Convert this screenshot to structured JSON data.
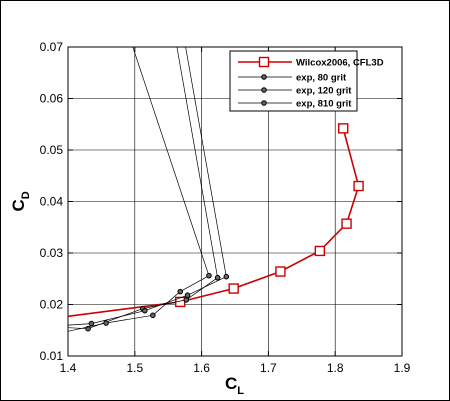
{
  "chart_data": {
    "type": "line",
    "xlabel": "C",
    "xlabel_sub": "L",
    "ylabel": "C",
    "ylabel_sub": "D",
    "xlim": [
      1.4,
      1.9
    ],
    "ylim": [
      0.01,
      0.07
    ],
    "xticks": [
      "1.4",
      "1.5",
      "1.6",
      "1.7",
      "1.8",
      "1.9"
    ],
    "yticks": [
      "0.01",
      "0.02",
      "0.03",
      "0.04",
      "0.05",
      "0.06",
      "0.07"
    ],
    "grid": true,
    "legend_position": "top-right",
    "series": [
      {
        "name": "Wilcox2006, CFL3D",
        "color": "#cc0000",
        "marker": "square",
        "x": [
          1.4,
          1.568,
          1.648,
          1.718,
          1.777,
          1.817,
          1.835,
          1.812
        ],
        "y": [
          0.0177,
          0.0205,
          0.0231,
          0.0264,
          0.0304,
          0.0357,
          0.043,
          0.0542
        ]
      },
      {
        "name": "exp, 80 grit",
        "color": "#000000",
        "marker": "circle",
        "x": [
          1.4,
          1.43,
          1.512,
          1.577,
          1.624,
          1.563
        ],
        "y": [
          0.0155,
          0.0153,
          0.0192,
          0.0209,
          0.0252,
          0.07
        ]
      },
      {
        "name": "exp, 120 grit",
        "color": "#000000",
        "marker": "circle",
        "x": [
          1.4,
          1.435,
          1.515,
          1.579,
          1.637,
          1.576
        ],
        "y": [
          0.016,
          0.0163,
          0.0188,
          0.0218,
          0.0254,
          0.07
        ]
      },
      {
        "name": "exp, 810 grit",
        "color": "#000000",
        "marker": "circle",
        "x": [
          1.4,
          1.457,
          1.527,
          1.568,
          1.611,
          1.497
        ],
        "y": [
          0.0148,
          0.0164,
          0.0179,
          0.0225,
          0.0256,
          0.07
        ]
      }
    ]
  }
}
